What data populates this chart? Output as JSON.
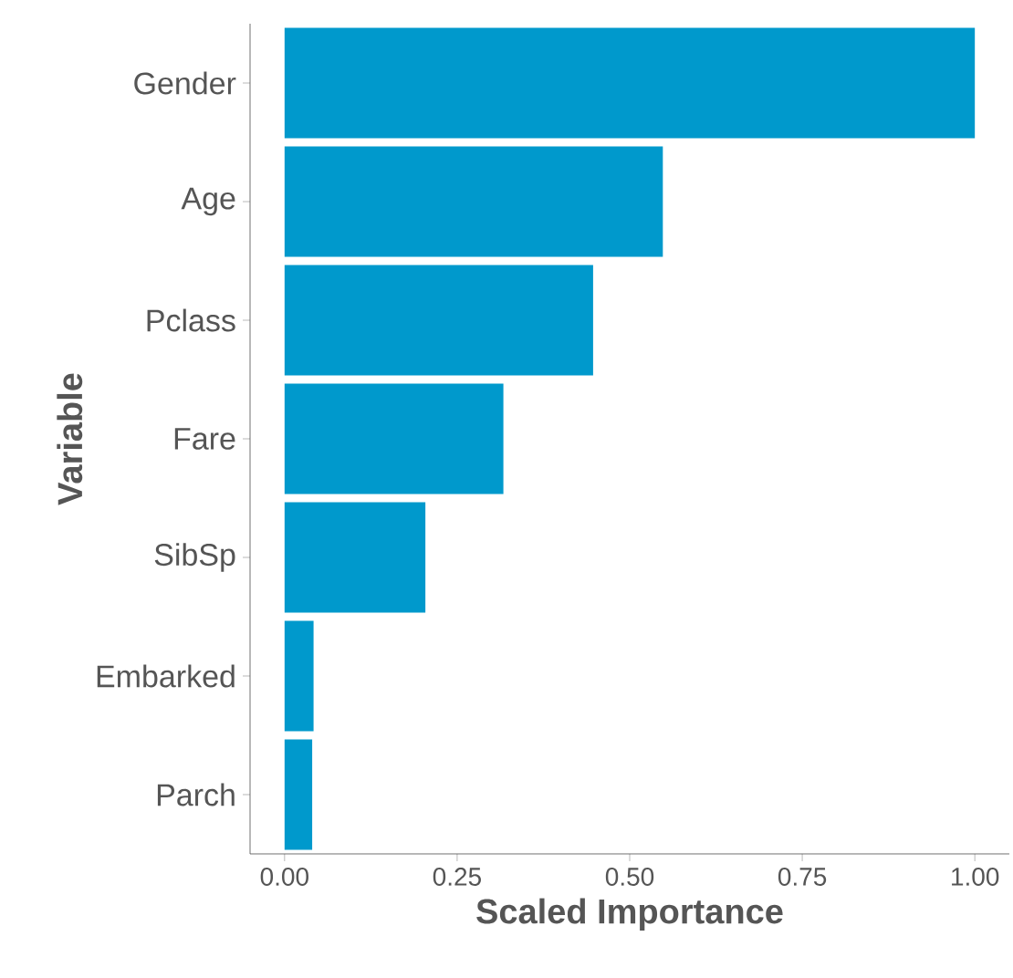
{
  "chart_data": {
    "type": "bar",
    "orientation": "horizontal",
    "xlabel": "Scaled Importance",
    "ylabel": "Variable",
    "categories": [
      "Gender",
      "Age",
      "Pclass",
      "Fare",
      "SibSp",
      "Embarked",
      "Parch"
    ],
    "values": [
      1.0,
      0.548,
      0.447,
      0.317,
      0.204,
      0.042,
      0.04
    ],
    "color": "#0099cc",
    "xlim": [
      -0.05,
      1.05
    ],
    "xticks": [
      {
        "value": 0,
        "label": "0.00"
      },
      {
        "value": 0.25,
        "label": "0.25"
      },
      {
        "value": 0.5,
        "label": "0.50"
      },
      {
        "value": 0.75,
        "label": "0.75"
      },
      {
        "value": 1,
        "label": "1.00"
      }
    ]
  }
}
